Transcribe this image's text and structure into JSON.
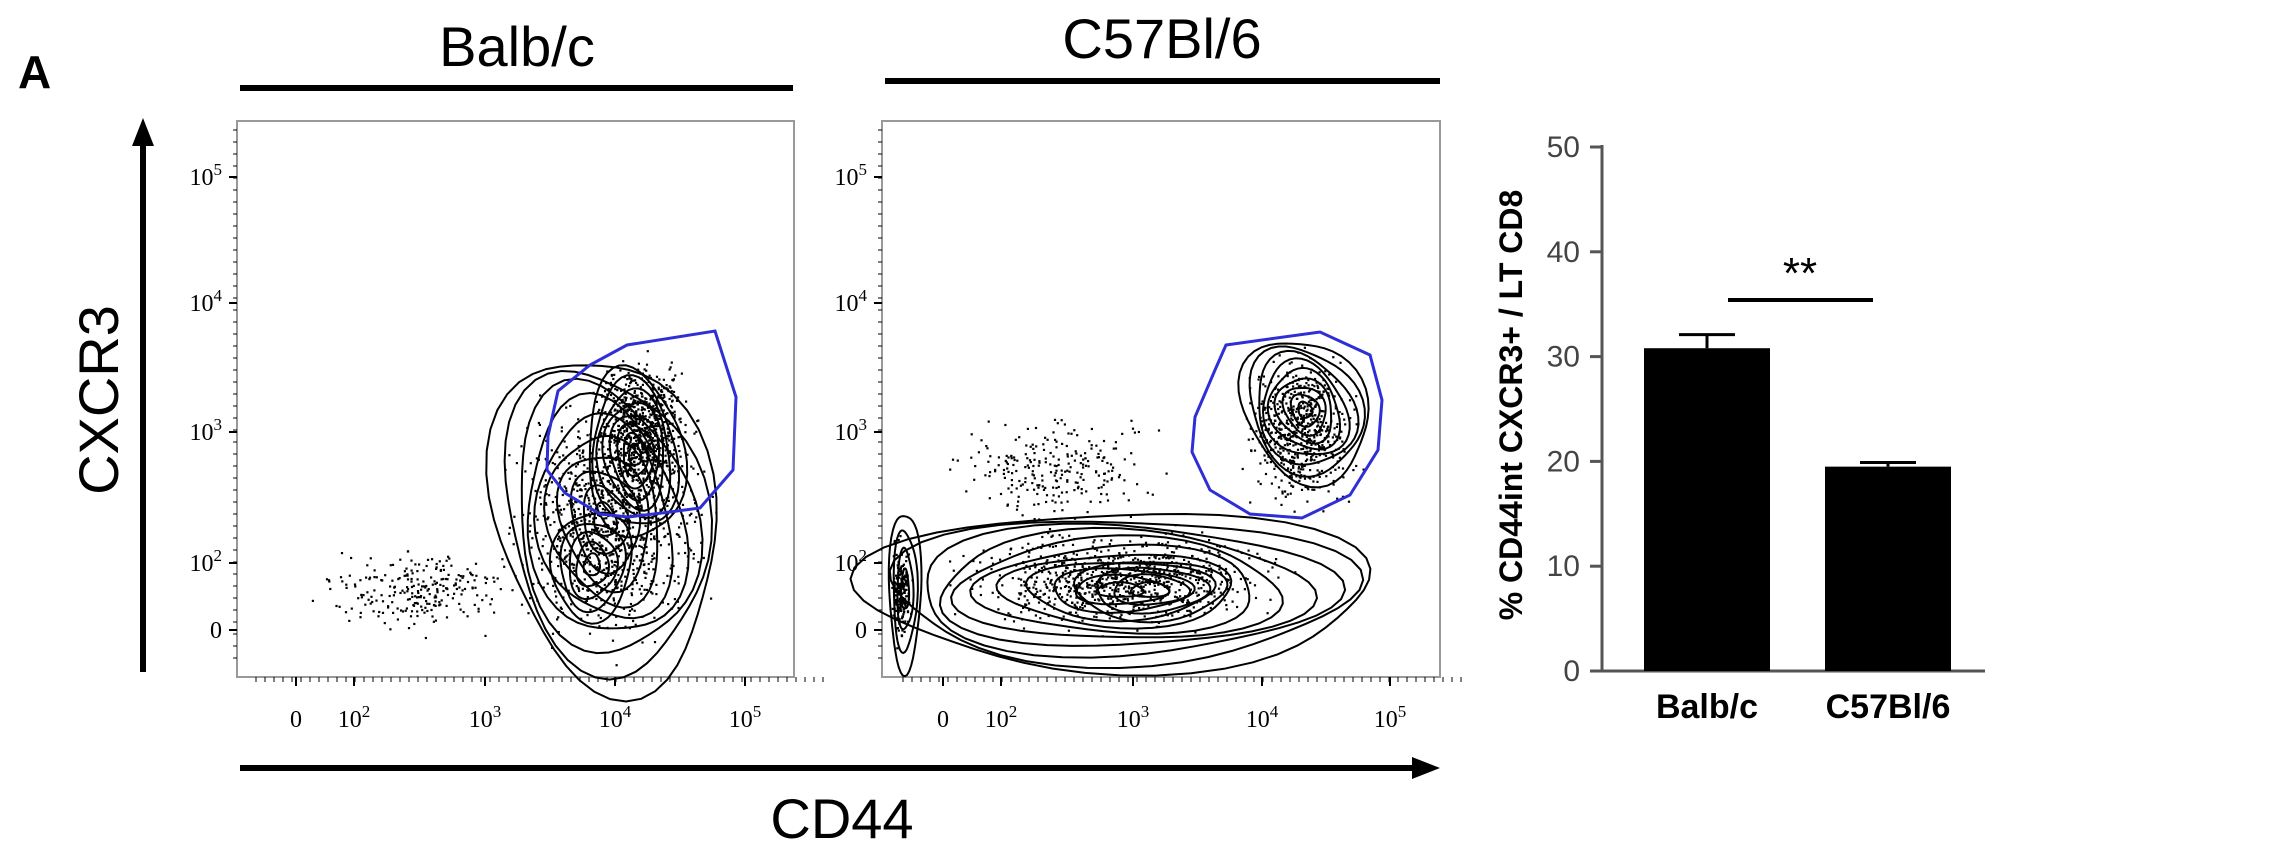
{
  "figure": {
    "panel_letter": "A",
    "group_left": "Balb/c",
    "group_right": "C57Bl/6",
    "y_axis_label": "CXCR3",
    "x_axis_label": "CD44",
    "gate_color": "#2e2ed6"
  },
  "flow_axes": {
    "y_ticks": [
      {
        "base": "10",
        "exp": "5"
      },
      {
        "base": "10",
        "exp": "4"
      },
      {
        "base": "10",
        "exp": "3"
      },
      {
        "base": "10",
        "exp": "2"
      },
      {
        "base": "0",
        "exp": ""
      }
    ],
    "x_ticks": [
      {
        "base": "0",
        "exp": ""
      },
      {
        "base": "10",
        "exp": "2"
      },
      {
        "base": "10",
        "exp": "3"
      },
      {
        "base": "10",
        "exp": "4"
      },
      {
        "base": "10",
        "exp": "5"
      }
    ]
  },
  "chart_data": {
    "type": "bar",
    "categories": [
      "Balb/c",
      "C57Bl/6"
    ],
    "values": [
      30.8,
      19.5
    ],
    "errors": [
      1.3,
      0.4
    ],
    "ylabel": "% CD44int CXCR3+ / LT CD8",
    "ylim": [
      0,
      50
    ],
    "yticks": [
      "0",
      "10",
      "20",
      "30",
      "40",
      "50"
    ],
    "bar_color": "#000000",
    "significance": "**"
  }
}
